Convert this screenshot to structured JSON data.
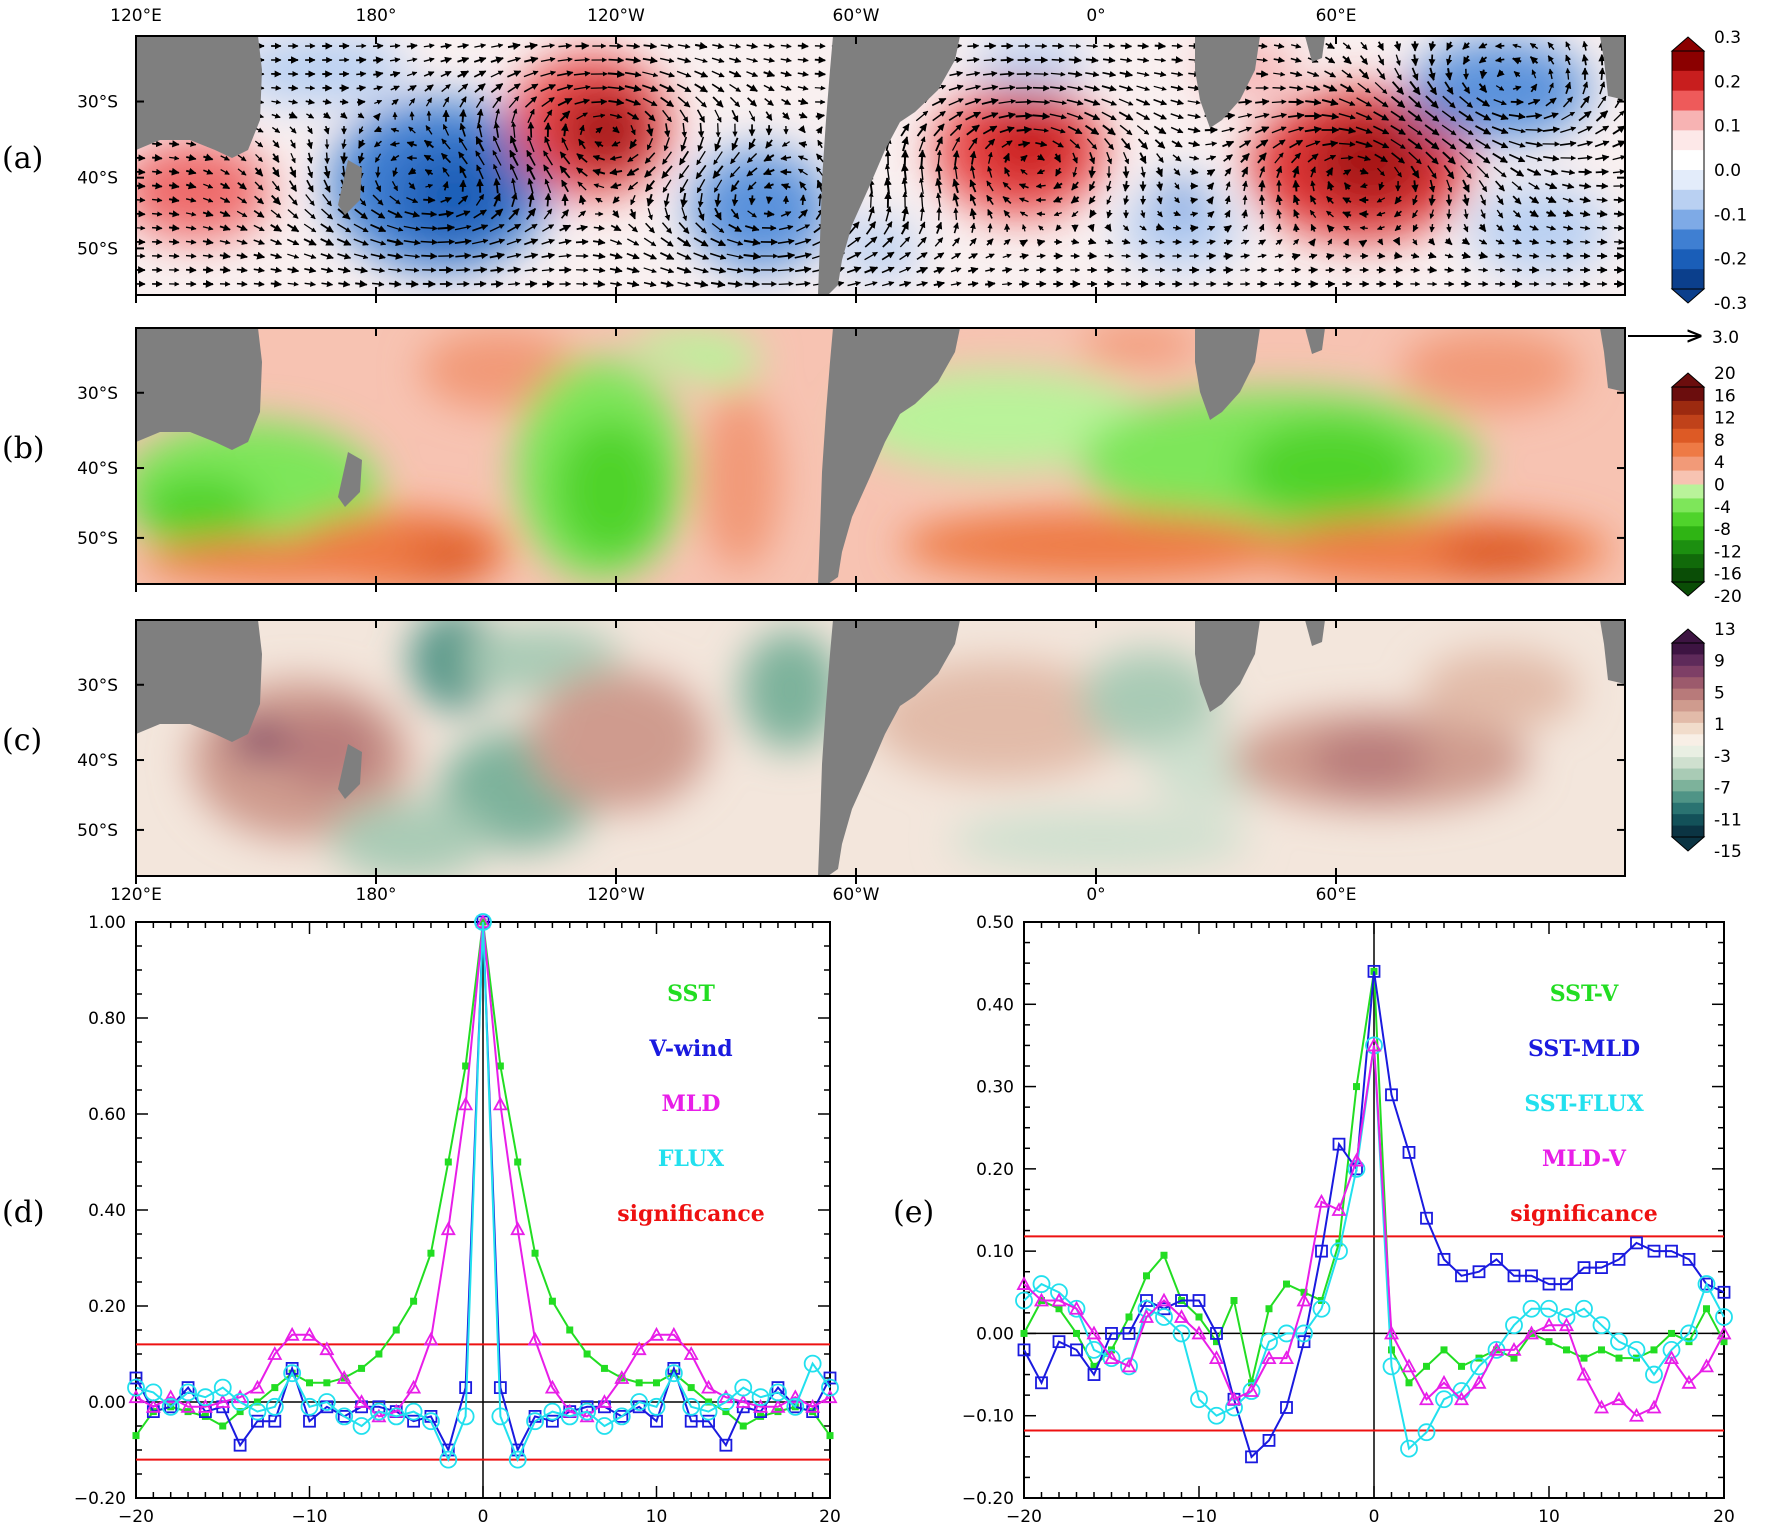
{
  "maps": {
    "lon_labels": [
      "120°E",
      "180°",
      "120°W",
      "60°W",
      "0°",
      "60°E"
    ],
    "lat_labels": [
      "30°S",
      "40°S",
      "50°S"
    ],
    "panel_a_label": "(a)",
    "panel_b_label": "(b)",
    "panel_c_label": "(c)",
    "vector_ref": "3.0",
    "colorbar_a": {
      "labels": [
        "0.3",
        "0.2",
        "0.1",
        "0.0",
        "-0.1",
        "-0.2",
        "-0.3"
      ],
      "colors": [
        "#8b0000",
        "#c81e1e",
        "#ee5a5a",
        "#f7b3b3",
        "#fde8e8",
        "#ffffff",
        "#e3ecfa",
        "#b9d0f2",
        "#7eaae6",
        "#3f7fd2",
        "#1a5eb8",
        "#0b3f8c"
      ]
    },
    "colorbar_b": {
      "labels": [
        "20",
        "16",
        "12",
        "8",
        "4",
        "0",
        "-4",
        "-8",
        "-12",
        "-16",
        "-20"
      ],
      "colors": [
        "#6b0d0d",
        "#9c2a10",
        "#c0421a",
        "#dd5a25",
        "#ee7a45",
        "#f29a78",
        "#f7c3b2",
        "#b9f39a",
        "#7ee65a",
        "#4fd32b",
        "#2fb414",
        "#1c8f10",
        "#116a0a",
        "#0a4d06"
      ]
    },
    "colorbar_c": {
      "labels": [
        "13",
        "9",
        "5",
        "1",
        "-3",
        "-7",
        "-11",
        "-15"
      ],
      "colors": [
        "#3d1442",
        "#5e2a5a",
        "#7e3f66",
        "#9c5a6c",
        "#b87a7a",
        "#cf9b8e",
        "#e2bba9",
        "#f1dccb",
        "#f8efe6",
        "#e9efe3",
        "#cfe0cf",
        "#a9cbb5",
        "#7db29b",
        "#4f9486",
        "#2a7371",
        "#135159",
        "#0b3443"
      ]
    }
  },
  "chart_data": [
    {
      "type": "line",
      "panel": "(d)",
      "title": "",
      "xlabel": "",
      "ylabel": "",
      "xlim": [
        -20,
        20
      ],
      "ylim": [
        -0.2,
        1.0
      ],
      "xticks": [
        -20,
        -10,
        0,
        10,
        20
      ],
      "xtick_labels": [
        "−20",
        "−10",
        "0",
        "10",
        "20"
      ],
      "yticks": [
        -0.2,
        0.0,
        0.2,
        0.4,
        0.6,
        0.8,
        1.0
      ],
      "ytick_labels": [
        "−0.20",
        "0.00",
        "0.20",
        "0.40",
        "0.60",
        "0.80",
        "1.00"
      ],
      "x": [
        -20,
        -19,
        -18,
        -17,
        -16,
        -15,
        -14,
        -13,
        -12,
        -11,
        -10,
        -9,
        -8,
        -7,
        -6,
        -5,
        -4,
        -3,
        -2,
        -1,
        0,
        1,
        2,
        3,
        4,
        5,
        6,
        7,
        8,
        9,
        10,
        11,
        12,
        13,
        14,
        15,
        16,
        17,
        18,
        19,
        20
      ],
      "series": [
        {
          "name": "SST",
          "color": "#22dd22",
          "marker": "square_filled",
          "values": [
            -0.07,
            -0.02,
            -0.01,
            -0.02,
            -0.03,
            -0.05,
            -0.02,
            0.0,
            0.03,
            0.06,
            0.04,
            0.04,
            0.05,
            0.07,
            0.1,
            0.15,
            0.21,
            0.31,
            0.5,
            0.7,
            1.0,
            0.7,
            0.5,
            0.31,
            0.21,
            0.15,
            0.1,
            0.07,
            0.05,
            0.04,
            0.04,
            0.06,
            0.03,
            0.0,
            -0.02,
            -0.05,
            -0.03,
            -0.02,
            -0.01,
            -0.02,
            -0.07
          ]
        },
        {
          "name": "V-wind",
          "color": "#1a1adf",
          "marker": "square_open",
          "values": [
            0.05,
            -0.02,
            -0.01,
            0.03,
            -0.02,
            -0.01,
            -0.09,
            -0.04,
            -0.04,
            0.07,
            -0.04,
            -0.01,
            -0.03,
            -0.01,
            -0.01,
            -0.02,
            -0.04,
            -0.03,
            -0.1,
            0.03,
            1.0,
            0.03,
            -0.1,
            -0.03,
            -0.04,
            -0.02,
            -0.01,
            -0.01,
            -0.03,
            -0.01,
            -0.04,
            0.07,
            -0.04,
            -0.04,
            -0.09,
            -0.01,
            -0.02,
            0.03,
            -0.01,
            -0.02,
            0.05
          ]
        },
        {
          "name": "MLD",
          "color": "#e81ee8",
          "marker": "triangle_open",
          "values": [
            0.01,
            -0.01,
            0.01,
            -0.01,
            -0.01,
            0.0,
            0.01,
            0.03,
            0.1,
            0.14,
            0.14,
            0.11,
            0.05,
            0.0,
            -0.03,
            -0.02,
            0.03,
            0.13,
            0.36,
            0.62,
            1.0,
            0.62,
            0.36,
            0.13,
            0.03,
            -0.02,
            -0.03,
            0.0,
            0.05,
            0.11,
            0.14,
            0.14,
            0.1,
            0.03,
            0.01,
            0.0,
            -0.01,
            -0.01,
            0.01,
            -0.01,
            0.01
          ]
        },
        {
          "name": "FLUX",
          "color": "#22e0ee",
          "marker": "circle_open",
          "values": [
            0.03,
            0.02,
            -0.01,
            0.02,
            0.01,
            0.03,
            0.0,
            -0.02,
            -0.01,
            0.06,
            -0.01,
            0.0,
            -0.03,
            -0.05,
            -0.02,
            -0.03,
            -0.02,
            -0.04,
            -0.12,
            -0.03,
            1.0,
            -0.03,
            -0.12,
            -0.04,
            -0.02,
            -0.03,
            -0.02,
            -0.05,
            -0.03,
            0.0,
            -0.01,
            0.06,
            -0.01,
            -0.02,
            0.0,
            0.03,
            0.01,
            0.02,
            -0.01,
            0.08,
            0.03
          ]
        }
      ],
      "significance": {
        "name": "significance",
        "color": "#ee1111",
        "levels": [
          0.12,
          -0.12
        ]
      },
      "legend": [
        "SST",
        "V-wind",
        "MLD",
        "FLUX",
        "significance"
      ]
    },
    {
      "type": "line",
      "panel": "(e)",
      "title": "",
      "xlabel": "",
      "ylabel": "",
      "xlim": [
        -20,
        20
      ],
      "ylim": [
        -0.2,
        0.5
      ],
      "xticks": [
        -20,
        -10,
        0,
        10,
        20
      ],
      "xtick_labels": [
        "−20",
        "−10",
        "0",
        "10",
        "20"
      ],
      "yticks": [
        -0.2,
        -0.1,
        0.0,
        0.1,
        0.2,
        0.3,
        0.4,
        0.5
      ],
      "ytick_labels": [
        "−0.20",
        "−0.10",
        "0.00",
        "0.10",
        "0.20",
        "0.30",
        "0.40",
        "0.50"
      ],
      "x": [
        -20,
        -19,
        -18,
        -17,
        -16,
        -15,
        -14,
        -13,
        -12,
        -11,
        -10,
        -9,
        -8,
        -7,
        -6,
        -5,
        -4,
        -3,
        -2,
        -1,
        0,
        1,
        2,
        3,
        4,
        5,
        6,
        7,
        8,
        9,
        10,
        11,
        12,
        13,
        14,
        15,
        16,
        17,
        18,
        19,
        20
      ],
      "series": [
        {
          "name": "SST-V",
          "color": "#22dd22",
          "marker": "square_filled",
          "values": [
            0.0,
            0.04,
            0.03,
            0.0,
            -0.04,
            -0.02,
            0.02,
            0.07,
            0.095,
            0.04,
            0.02,
            -0.01,
            0.04,
            -0.06,
            0.03,
            0.06,
            0.05,
            0.04,
            0.11,
            0.3,
            0.44,
            -0.02,
            -0.06,
            -0.04,
            -0.02,
            -0.04,
            -0.03,
            -0.02,
            -0.03,
            0.0,
            -0.01,
            -0.02,
            -0.03,
            -0.02,
            -0.03,
            -0.03,
            -0.02,
            0.0,
            -0.01,
            0.03,
            -0.01
          ]
        },
        {
          "name": "SST-MLD",
          "color": "#1a1adf",
          "marker": "square_open",
          "values": [
            -0.02,
            -0.06,
            -0.01,
            -0.02,
            -0.05,
            0.0,
            0.0,
            0.04,
            0.03,
            0.04,
            0.04,
            0.0,
            -0.08,
            -0.15,
            -0.13,
            -0.09,
            -0.01,
            0.1,
            0.23,
            0.2,
            0.44,
            0.29,
            0.22,
            0.14,
            0.09,
            0.07,
            0.075,
            0.09,
            0.07,
            0.07,
            0.06,
            0.06,
            0.08,
            0.08,
            0.09,
            0.11,
            0.1,
            0.1,
            0.09,
            0.06,
            0.05
          ]
        },
        {
          "name": "SST-FLUX",
          "color": "#22e0ee",
          "marker": "circle_open",
          "values": [
            0.04,
            0.06,
            0.05,
            0.03,
            -0.02,
            -0.03,
            -0.04,
            0.03,
            0.02,
            0.0,
            -0.08,
            -0.1,
            -0.09,
            -0.07,
            -0.01,
            0.0,
            0.0,
            0.03,
            0.1,
            0.2,
            0.35,
            -0.04,
            -0.14,
            -0.12,
            -0.08,
            -0.07,
            -0.04,
            -0.02,
            0.01,
            0.03,
            0.03,
            0.02,
            0.03,
            0.01,
            -0.01,
            -0.02,
            -0.05,
            -0.02,
            0.0,
            0.06,
            0.02
          ]
        },
        {
          "name": "MLD-V",
          "color": "#e81ee8",
          "marker": "triangle_open",
          "values": [
            0.06,
            0.04,
            0.04,
            0.03,
            0.0,
            -0.03,
            -0.04,
            0.02,
            0.04,
            0.02,
            0.0,
            -0.03,
            -0.08,
            -0.07,
            -0.03,
            -0.03,
            0.04,
            0.16,
            0.15,
            0.21,
            0.35,
            0.0,
            -0.04,
            -0.08,
            -0.06,
            -0.08,
            -0.06,
            -0.02,
            -0.02,
            0.0,
            0.01,
            0.01,
            -0.05,
            -0.09,
            -0.08,
            -0.1,
            -0.09,
            -0.03,
            -0.06,
            -0.04,
            0.0
          ]
        }
      ],
      "significance": {
        "name": "significance",
        "color": "#ee1111",
        "levels": [
          0.118,
          -0.118
        ]
      },
      "legend": [
        "SST-V",
        "SST-MLD",
        "SST-FLUX",
        "MLD-V",
        "significance"
      ]
    }
  ],
  "panel_d_label": "(d)",
  "panel_e_label": "(e)"
}
